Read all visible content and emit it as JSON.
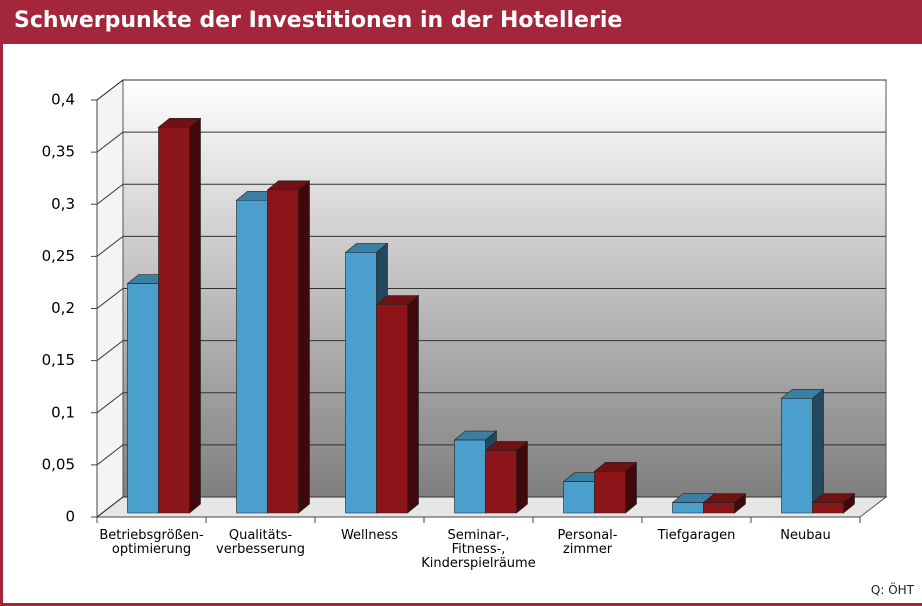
{
  "title": "Schwerpunkte der Investitionen in der Hotellerie",
  "source": "Q: ÖHT",
  "chart_data": {
    "type": "bar3d",
    "categories": [
      "Betriebsgrößen-\noptimierung",
      "Qualitäts-\nverbesserung",
      "Wellness",
      "Seminar-,\nFitness-,\nKinderspielräume",
      "Personal-\nzimmer",
      "Tiefgaragen",
      "Neubau"
    ],
    "series": [
      {
        "color": "#4a9fcc",
        "values": [
          0.22,
          0.3,
          0.25,
          0.07,
          0.03,
          0.01,
          0.11
        ]
      },
      {
        "color": "#8c1519",
        "values": [
          0.37,
          0.31,
          0.2,
          0.06,
          0.04,
          0.01,
          0.01
        ]
      }
    ],
    "ylim": [
      0,
      0.4
    ],
    "yticks": [
      0,
      {
        "value": 0.05,
        "label": "0,05"
      },
      {
        "value": 0.1,
        "label": "0,1"
      },
      {
        "value": 0.15,
        "label": "0,15"
      },
      {
        "value": 0.2,
        "label": "0,2"
      },
      {
        "value": 0.25,
        "label": "0,25"
      },
      {
        "value": 0.3,
        "label": "0,3"
      },
      {
        "value": 0.35,
        "label": "0,35"
      },
      {
        "value": 0.4,
        "label": "0,4"
      }
    ],
    "grid": true
  }
}
